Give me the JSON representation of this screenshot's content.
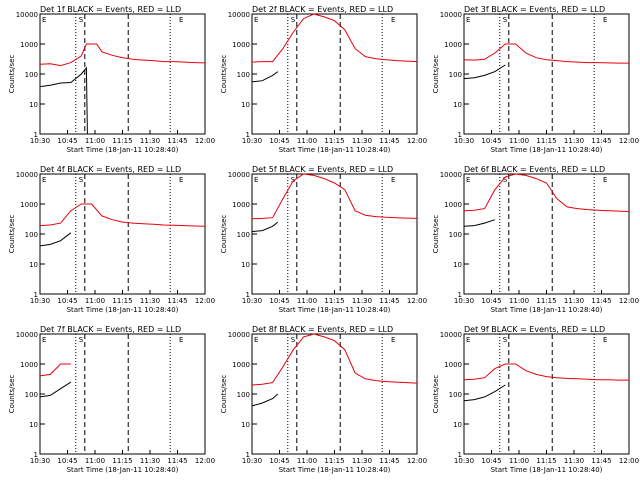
{
  "figure": {
    "background": "#ffffff",
    "events_color": "#000000",
    "lld_color": "#e8000b"
  },
  "chart_data": [
    {
      "type": "line",
      "title": "Det 1f BLACK = Events, RED = LLD",
      "xlabel": "Start Time (18-Jan-11 10:28:40)",
      "ylabel": "Counts/sec",
      "yscale": "log",
      "ylim": [
        1,
        10000
      ],
      "yticks": [
        "1",
        "10",
        "100",
        "1000",
        "10000"
      ],
      "xticks": [
        "10:30",
        "10:45",
        "11:00",
        "11:15",
        "11:30",
        "11:45",
        "12:00"
      ],
      "markers": [
        "E",
        "S",
        "E"
      ],
      "series": [
        {
          "name": "BLACK = Events",
          "color": "#000000",
          "points": [
            [
              0,
              38
            ],
            [
              1,
              42
            ],
            [
              2,
              50
            ],
            [
              3,
              52
            ],
            [
              4,
              100
            ],
            [
              4.5,
              160
            ],
            [
              4.6,
              1
            ]
          ]
        },
        {
          "name": "RED = LLD",
          "color": "#e8000b",
          "points": [
            [
              0,
              210
            ],
            [
              1,
              220
            ],
            [
              2,
              190
            ],
            [
              3,
              240
            ],
            [
              4,
              400
            ],
            [
              4.5,
              1000
            ],
            [
              5.5,
              1000
            ],
            [
              6,
              550
            ],
            [
              7,
              420
            ],
            [
              8,
              350
            ],
            [
              9,
              310
            ],
            [
              10,
              290
            ],
            [
              11,
              280
            ],
            [
              12,
              260
            ],
            [
              13,
              260
            ],
            [
              14,
              250
            ],
            [
              15,
              240
            ],
            [
              16,
              235
            ]
          ]
        }
      ]
    },
    {
      "type": "line",
      "title": "Det 2f BLACK = Events, RED = LLD",
      "xlabel": "Start Time (18-Jan-11 10:28:40)",
      "ylabel": "Counts/sec",
      "yscale": "log",
      "ylim": [
        1,
        10000
      ],
      "yticks": [
        "1",
        "10",
        "100",
        "1000",
        "10000"
      ],
      "xticks": [
        "10:30",
        "10:45",
        "11:00",
        "11:15",
        "11:30",
        "11:45",
        "12:00"
      ],
      "markers": [
        "E",
        "S",
        "E"
      ],
      "series": [
        {
          "name": "BLACK = Events",
          "color": "#000000",
          "points": [
            [
              0,
              55
            ],
            [
              1,
              60
            ],
            [
              2,
              90
            ],
            [
              2.5,
              120
            ]
          ]
        },
        {
          "name": "RED = LLD",
          "color": "#e8000b",
          "points": [
            [
              0,
              250
            ],
            [
              1,
              260
            ],
            [
              2,
              260
            ],
            [
              3,
              700
            ],
            [
              4,
              2500
            ],
            [
              5,
              7000
            ],
            [
              6,
              10000
            ],
            [
              7,
              8000
            ],
            [
              8,
              6000
            ],
            [
              9,
              3000
            ],
            [
              10,
              700
            ],
            [
              11,
              380
            ],
            [
              12,
              320
            ],
            [
              13,
              300
            ],
            [
              14,
              280
            ],
            [
              15,
              270
            ],
            [
              16,
              260
            ]
          ]
        }
      ]
    },
    {
      "type": "line",
      "title": "Det 3f BLACK = Events, RED = LLD",
      "xlabel": "Start Time (18-Jan-11 10:28:40)",
      "ylabel": "Counts/sec",
      "yscale": "log",
      "ylim": [
        1,
        10000
      ],
      "yticks": [
        "1",
        "10",
        "100",
        "1000",
        "10000"
      ],
      "xticks": [
        "10:30",
        "10:45",
        "11:00",
        "11:15",
        "11:30",
        "11:45",
        "12:00"
      ],
      "markers": [
        "E",
        "S",
        "E"
      ],
      "series": [
        {
          "name": "BLACK = Events",
          "color": "#000000",
          "points": [
            [
              0,
              70
            ],
            [
              1,
              75
            ],
            [
              2,
              90
            ],
            [
              3,
              120
            ],
            [
              4,
              200
            ]
          ]
        },
        {
          "name": "RED = LLD",
          "color": "#e8000b",
          "points": [
            [
              0,
              300
            ],
            [
              1,
              290
            ],
            [
              2,
              310
            ],
            [
              3,
              500
            ],
            [
              4,
              1000
            ],
            [
              5,
              1000
            ],
            [
              6,
              500
            ],
            [
              7,
              350
            ],
            [
              8,
              300
            ],
            [
              9,
              280
            ],
            [
              10,
              260
            ],
            [
              11,
              250
            ],
            [
              12,
              240
            ],
            [
              13,
              240
            ],
            [
              14,
              235
            ],
            [
              15,
              230
            ],
            [
              16,
              230
            ]
          ]
        }
      ]
    },
    {
      "type": "line",
      "title": "Det 4f BLACK = Events, RED = LLD",
      "xlabel": "Start Time (18-Jan-11 10:28:40)",
      "ylabel": "Counts/sec",
      "yscale": "log",
      "ylim": [
        1,
        10000
      ],
      "yticks": [
        "1",
        "10",
        "100",
        "1000",
        "10000"
      ],
      "xticks": [
        "10:30",
        "10:45",
        "11:00",
        "11:15",
        "11:30",
        "11:45",
        "12:00"
      ],
      "markers": [
        "E",
        "S",
        "E"
      ],
      "series": [
        {
          "name": "BLACK = Events",
          "color": "#000000",
          "points": [
            [
              0,
              40
            ],
            [
              1,
              45
            ],
            [
              2,
              60
            ],
            [
              3,
              110
            ]
          ]
        },
        {
          "name": "RED = LLD",
          "color": "#e8000b",
          "points": [
            [
              0,
              190
            ],
            [
              1,
              200
            ],
            [
              2,
              230
            ],
            [
              3,
              600
            ],
            [
              4,
              1000
            ],
            [
              5,
              1000
            ],
            [
              6,
              400
            ],
            [
              7,
              300
            ],
            [
              8,
              250
            ],
            [
              9,
              230
            ],
            [
              10,
              220
            ],
            [
              11,
              210
            ],
            [
              12,
              200
            ],
            [
              13,
              195
            ],
            [
              14,
              190
            ],
            [
              15,
              185
            ],
            [
              16,
              180
            ]
          ]
        }
      ]
    },
    {
      "type": "line",
      "title": "Det 5f BLACK = Events, RED = LLD",
      "xlabel": "Start Time (18-Jan-11 10:28:40)",
      "ylabel": "Counts/sec",
      "yscale": "log",
      "ylim": [
        1,
        10000
      ],
      "yticks": [
        "1",
        "10",
        "100",
        "1000",
        "10000"
      ],
      "xticks": [
        "10:30",
        "10:45",
        "11:00",
        "11:15",
        "11:30",
        "11:45",
        "12:00"
      ],
      "markers": [
        "E",
        "S",
        "E"
      ],
      "series": [
        {
          "name": "BLACK = Events",
          "color": "#000000",
          "points": [
            [
              0,
              120
            ],
            [
              1,
              130
            ],
            [
              2,
              180
            ],
            [
              2.5,
              250
            ]
          ]
        },
        {
          "name": "RED = LLD",
          "color": "#e8000b",
          "points": [
            [
              0,
              320
            ],
            [
              1,
              330
            ],
            [
              2,
              350
            ],
            [
              3,
              1500
            ],
            [
              4,
              6000
            ],
            [
              5,
              10000
            ],
            [
              6,
              9000
            ],
            [
              7,
              7000
            ],
            [
              8,
              5000
            ],
            [
              9,
              3000
            ],
            [
              10,
              600
            ],
            [
              11,
              420
            ],
            [
              12,
              380
            ],
            [
              13,
              360
            ],
            [
              14,
              350
            ],
            [
              15,
              340
            ],
            [
              16,
              330
            ]
          ]
        }
      ]
    },
    {
      "type": "line",
      "title": "Det 6f BLACK = Events, RED = LLD",
      "xlabel": "Start Time (18-Jan-11 10:28:40)",
      "ylabel": "Counts/sec",
      "yscale": "log",
      "ylim": [
        1,
        10000
      ],
      "yticks": [
        "1",
        "10",
        "100",
        "1000",
        "10000"
      ],
      "xticks": [
        "10:30",
        "10:45",
        "11:00",
        "11:15",
        "11:30",
        "11:45",
        "12:00"
      ],
      "markers": [
        "E",
        "S",
        "E"
      ],
      "series": [
        {
          "name": "BLACK = Events",
          "color": "#000000",
          "points": [
            [
              0,
              180
            ],
            [
              1,
              190
            ],
            [
              2,
              230
            ],
            [
              3,
              300
            ]
          ]
        },
        {
          "name": "RED = LLD",
          "color": "#e8000b",
          "points": [
            [
              0,
              600
            ],
            [
              1,
              620
            ],
            [
              2,
              700
            ],
            [
              3,
              3000
            ],
            [
              4,
              8000
            ],
            [
              5,
              10000
            ],
            [
              6,
              9000
            ],
            [
              7,
              7000
            ],
            [
              8,
              5000
            ],
            [
              9,
              1500
            ],
            [
              10,
              800
            ],
            [
              11,
              700
            ],
            [
              12,
              650
            ],
            [
              13,
              620
            ],
            [
              14,
              600
            ],
            [
              15,
              580
            ],
            [
              16,
              560
            ]
          ]
        }
      ]
    },
    {
      "type": "line",
      "title": "Det 7f BLACK = Events, RED = LLD",
      "xlabel": "Start Time (18-Jan-11 10:28:40)",
      "ylabel": "Counts/sec",
      "yscale": "log",
      "ylim": [
        1,
        10000
      ],
      "yticks": [
        "1",
        "10",
        "100",
        "1000",
        "10000"
      ],
      "xticks": [
        "10:30",
        "10:45",
        "11:00",
        "11:15",
        "11:30",
        "11:45",
        "12:00"
      ],
      "markers": [
        "E",
        "S",
        "E"
      ],
      "series": [
        {
          "name": "BLACK = Events",
          "color": "#000000",
          "points": [
            [
              0,
              80
            ],
            [
              1,
              90
            ],
            [
              2,
              150
            ],
            [
              3,
              250
            ]
          ]
        },
        {
          "name": "RED = LLD",
          "color": "#e8000b",
          "points": [
            [
              0,
              400
            ],
            [
              1,
              450
            ],
            [
              2,
              1000
            ],
            [
              3,
              1000
            ]
          ]
        }
      ]
    },
    {
      "type": "line",
      "title": "Det 8f BLACK = Events, RED = LLD",
      "xlabel": "Start Time (18-Jan-11 10:28:40)",
      "ylabel": "Counts/sec",
      "yscale": "log",
      "ylim": [
        1,
        10000
      ],
      "yticks": [
        "1",
        "10",
        "100",
        "1000",
        "10000"
      ],
      "xticks": [
        "10:30",
        "10:45",
        "11:00",
        "11:15",
        "11:30",
        "11:45",
        "12:00"
      ],
      "markers": [
        "E",
        "S",
        "E"
      ],
      "series": [
        {
          "name": "BLACK = Events",
          "color": "#000000",
          "points": [
            [
              0,
              40
            ],
            [
              1,
              50
            ],
            [
              2,
              70
            ],
            [
              2.5,
              100
            ]
          ]
        },
        {
          "name": "RED = LLD",
          "color": "#e8000b",
          "points": [
            [
              0,
              200
            ],
            [
              1,
              210
            ],
            [
              2,
              240
            ],
            [
              3,
              800
            ],
            [
              4,
              3000
            ],
            [
              5,
              8000
            ],
            [
              6,
              10000
            ],
            [
              7,
              8000
            ],
            [
              8,
              6000
            ],
            [
              9,
              3000
            ],
            [
              10,
              500
            ],
            [
              11,
              320
            ],
            [
              12,
              280
            ],
            [
              13,
              260
            ],
            [
              14,
              250
            ],
            [
              15,
              240
            ],
            [
              16,
              230
            ]
          ]
        }
      ]
    },
    {
      "type": "line",
      "title": "Det 9f BLACK = Events, RED = LLD",
      "xlabel": "Start Time (18-Jan-11 10:28:40)",
      "ylabel": "Counts/sec",
      "yscale": "log",
      "ylim": [
        1,
        10000
      ],
      "yticks": [
        "1",
        "10",
        "100",
        "1000",
        "10000"
      ],
      "xticks": [
        "10:30",
        "10:45",
        "11:00",
        "11:15",
        "11:30",
        "11:45",
        "12:00"
      ],
      "markers": [
        "E",
        "S",
        "E"
      ],
      "series": [
        {
          "name": "BLACK = Events",
          "color": "#000000",
          "points": [
            [
              0,
              60
            ],
            [
              1,
              65
            ],
            [
              2,
              80
            ],
            [
              3,
              120
            ],
            [
              4,
              200
            ]
          ]
        },
        {
          "name": "RED = LLD",
          "color": "#e8000b",
          "points": [
            [
              0,
              300
            ],
            [
              1,
              310
            ],
            [
              2,
              350
            ],
            [
              3,
              700
            ],
            [
              4,
              1000
            ],
            [
              5,
              1000
            ],
            [
              6,
              600
            ],
            [
              7,
              450
            ],
            [
              8,
              380
            ],
            [
              9,
              350
            ],
            [
              10,
              330
            ],
            [
              11,
              320
            ],
            [
              12,
              310
            ],
            [
              13,
              300
            ],
            [
              14,
              300
            ],
            [
              15,
              290
            ],
            [
              16,
              290
            ]
          ]
        }
      ]
    }
  ]
}
